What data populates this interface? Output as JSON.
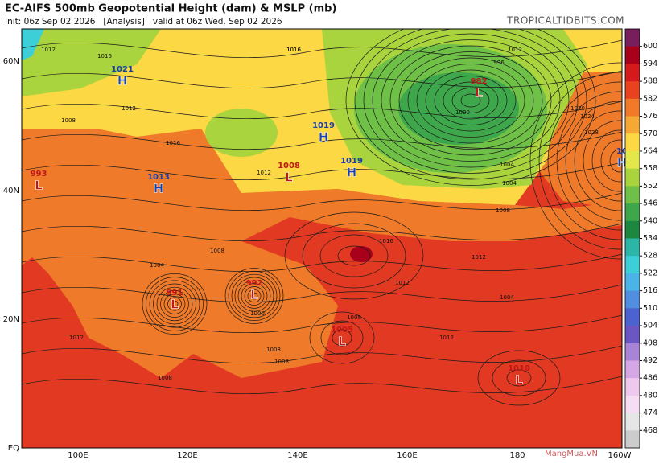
{
  "header": {
    "title": "EC-AIFS 500mb Geopotential Height (dam) & MSLP (mb)",
    "subtitle": "Init: 06z Sep 02 2026   [Analysis]   valid at 06z Wed, Sep 02 2026",
    "site": "TROPICALTIDBITS.COM"
  },
  "map": {
    "lat_labels": [
      "60N",
      "40N",
      "20N",
      "EQ"
    ],
    "lon_labels": [
      "100E",
      "120E",
      "140E",
      "160E",
      "180",
      "160W"
    ],
    "centers": [
      {
        "type": "H",
        "pressure": "1021"
      },
      {
        "type": "H",
        "pressure": "1013"
      },
      {
        "type": "H",
        "pressure": "1019"
      },
      {
        "type": "H",
        "pressure": "1019"
      },
      {
        "type": "L",
        "pressure": "1008"
      },
      {
        "type": "L",
        "pressure": "982"
      },
      {
        "type": "L",
        "pressure": "991"
      },
      {
        "type": "L",
        "pressure": "992"
      },
      {
        "type": "L",
        "pressure": "1005"
      },
      {
        "type": "L",
        "pressure": "1010"
      },
      {
        "type": "L",
        "pressure": "993"
      },
      {
        "type": "H",
        "pressure": "10"
      }
    ],
    "contour_labels": [
      "1012",
      "1016",
      "1016",
      "1012",
      "1008",
      "1012",
      "1004",
      "1008",
      "1016",
      "1012",
      "1008",
      "1004",
      "1000",
      "1008",
      "1008",
      "1012",
      "1016",
      "1020",
      "1024",
      "1028",
      "1004",
      "1008",
      "1012",
      "1004",
      "996",
      "1000",
      "1008",
      "1016",
      "1012",
      "1012"
    ],
    "watermark": "MangMua.VN"
  },
  "colorbar": {
    "ticks": [
      600,
      594,
      588,
      582,
      576,
      570,
      564,
      558,
      552,
      546,
      540,
      534,
      528,
      522,
      516,
      510,
      504,
      498,
      492,
      486,
      480,
      474,
      468
    ],
    "colors": [
      "#7a1d5c",
      "#a8001a",
      "#d41a1a",
      "#e8421e",
      "#f07a28",
      "#f6a834",
      "#fbd844",
      "#e2e84c",
      "#a9d43e",
      "#6fc046",
      "#3ea64b",
      "#1c873f",
      "#2bb6a8",
      "#3ccfd8",
      "#4ab4e8",
      "#4f8ee0",
      "#4b62cf",
      "#6b56c4",
      "#a883d6",
      "#d6a7e5",
      "#efc8ee",
      "#f6ddf3",
      "#e6e6e6",
      "#cccccc"
    ]
  }
}
